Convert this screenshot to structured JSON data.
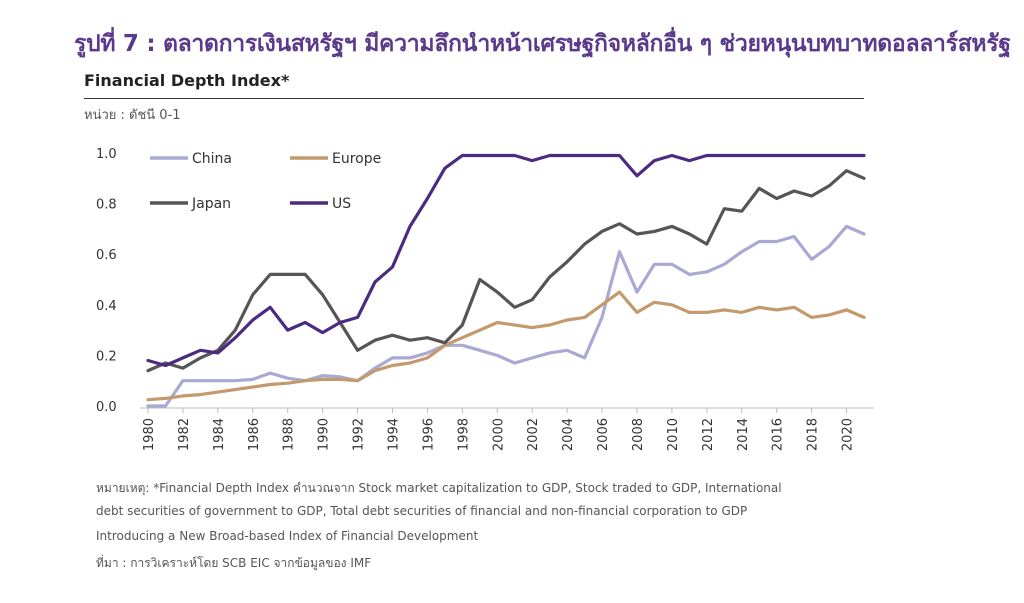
{
  "figure_title": "รูปที่ 7 : ตลาดการเงินสหรัฐฯ มีความลึกนำหน้าเศรษฐกิจหลักอื่น ๆ ช่วยหนุนบทบาทดอลลาร์สหรัฐ",
  "chart_title": "Financial Depth Index*",
  "unit": "หน่วย : ดัชนี 0-1",
  "notes": [
    "หมายเหตุ: *Financial Depth Index คำนวณจาก Stock market capitalization to GDP, Stock traded to GDP, International",
    "debt securities of government to GDP, Total debt securities of financial and non-financial corporation to GDP",
    "Introducing a New Broad-based Index of Financial Development",
    "ที่มา : การวิเคราะห์โดย SCB EIC จากข้อมูลของ IMF"
  ],
  "chart_data": {
    "type": "line",
    "title": "Financial Depth Index*",
    "xlabel": "",
    "ylabel": "",
    "ylim": [
      0,
      1.0
    ],
    "yticks": [
      "0.0",
      "0.2",
      "0.4",
      "0.6",
      "0.8",
      "1.0"
    ],
    "xticks": [
      "1980",
      "1982",
      "1984",
      "1986",
      "1988",
      "1990",
      "1992",
      "1994",
      "1996",
      "1998",
      "2000",
      "2002",
      "2004",
      "2006",
      "2008",
      "2010",
      "2012",
      "2014",
      "2016",
      "2018",
      "2020"
    ],
    "x": [
      1980,
      1981,
      1982,
      1983,
      1984,
      1985,
      1986,
      1987,
      1988,
      1989,
      1990,
      1991,
      1992,
      1993,
      1994,
      1995,
      1996,
      1997,
      1998,
      1999,
      2000,
      2001,
      2002,
      2003,
      2004,
      2005,
      2006,
      2007,
      2008,
      2009,
      2010,
      2011,
      2012,
      2013,
      2014,
      2015,
      2016,
      2017,
      2018,
      2019,
      2020,
      2021
    ],
    "legend_position": "top-left",
    "grid": false,
    "series": [
      {
        "name": "China",
        "color": "#a9a9d4",
        "values": [
          0.0,
          0.0,
          0.1,
          0.1,
          0.1,
          0.1,
          0.105,
          0.13,
          0.11,
          0.1,
          0.12,
          0.115,
          0.1,
          0.15,
          0.19,
          0.19,
          0.21,
          0.24,
          0.24,
          0.22,
          0.2,
          0.17,
          0.19,
          0.21,
          0.22,
          0.19,
          0.35,
          0.61,
          0.45,
          0.56,
          0.56,
          0.52,
          0.53,
          0.56,
          0.61,
          0.65,
          0.65,
          0.67,
          0.58,
          0.63,
          0.71,
          0.68
        ]
      },
      {
        "name": "Europe",
        "color": "#c49a6c",
        "values": [
          0.025,
          0.03,
          0.04,
          0.045,
          0.055,
          0.065,
          0.075,
          0.085,
          0.09,
          0.1,
          0.105,
          0.105,
          0.1,
          0.14,
          0.16,
          0.17,
          0.19,
          0.24,
          0.27,
          0.3,
          0.33,
          0.32,
          0.31,
          0.32,
          0.34,
          0.35,
          0.4,
          0.45,
          0.37,
          0.41,
          0.4,
          0.37,
          0.37,
          0.38,
          0.37,
          0.39,
          0.38,
          0.39,
          0.35,
          0.36,
          0.38,
          0.35
        ]
      },
      {
        "name": "Japan",
        "color": "#555555",
        "values": [
          0.14,
          0.17,
          0.15,
          0.19,
          0.22,
          0.3,
          0.44,
          0.52,
          0.52,
          0.52,
          0.44,
          0.33,
          0.22,
          0.26,
          0.28,
          0.26,
          0.27,
          0.25,
          0.32,
          0.5,
          0.45,
          0.39,
          0.42,
          0.51,
          0.57,
          0.64,
          0.69,
          0.72,
          0.68,
          0.69,
          0.71,
          0.68,
          0.64,
          0.78,
          0.77,
          0.86,
          0.82,
          0.85,
          0.83,
          0.87,
          0.93,
          0.9
        ]
      },
      {
        "name": "US",
        "color": "#4b2a80",
        "values": [
          0.18,
          0.16,
          0.19,
          0.22,
          0.21,
          0.27,
          0.34,
          0.39,
          0.3,
          0.33,
          0.29,
          0.33,
          0.35,
          0.49,
          0.55,
          0.71,
          0.82,
          0.94,
          0.99,
          0.99,
          0.99,
          0.99,
          0.97,
          0.99,
          0.99,
          0.99,
          0.99,
          0.99,
          0.91,
          0.97,
          0.99,
          0.97,
          0.99,
          0.99,
          0.99,
          0.99,
          0.99,
          0.99,
          0.99,
          0.99,
          0.99,
          0.99
        ]
      }
    ]
  }
}
